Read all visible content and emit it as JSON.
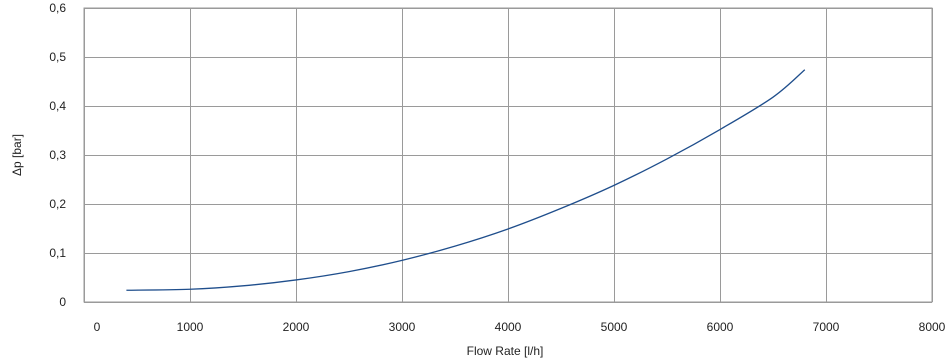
{
  "chart_data": {
    "type": "line",
    "xlabel": "Flow Rate [l/h]",
    "ylabel": "Δp [bar]",
    "xlim": [
      0,
      8000
    ],
    "ylim": [
      0,
      0.6
    ],
    "x_ticks": [
      0,
      1000,
      2000,
      3000,
      4000,
      5000,
      6000,
      7000,
      8000
    ],
    "x_tick_labels": [
      "0",
      "1000",
      "2000",
      "3000",
      "4000",
      "5000",
      "6000",
      "7000",
      "8000"
    ],
    "y_ticks": [
      0,
      0.1,
      0.2,
      0.3,
      0.4,
      0.5,
      0.6
    ],
    "y_tick_labels": [
      "0",
      "0,1",
      "0,2",
      "0,3",
      "0,4",
      "0,5",
      "0,6"
    ],
    "grid": true,
    "series": [
      {
        "color": "#1f4e8c",
        "x": [
          400,
          1000,
          1500,
          2000,
          2500,
          3000,
          3500,
          4000,
          4500,
          5000,
          5500,
          6000,
          6500,
          6800
        ],
        "y": [
          0.024,
          0.026,
          0.033,
          0.045,
          0.062,
          0.085,
          0.114,
          0.149,
          0.191,
          0.238,
          0.292,
          0.352,
          0.418,
          0.474
        ]
      }
    ]
  }
}
